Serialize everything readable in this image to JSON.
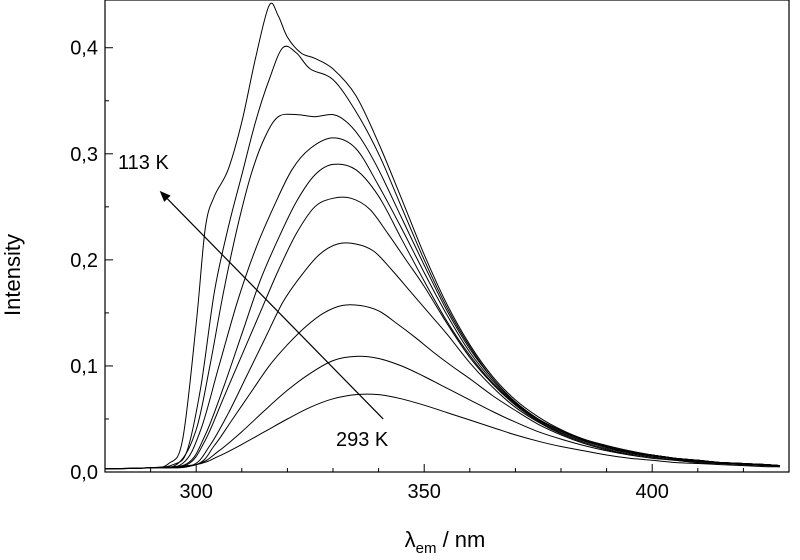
{
  "chart_data": {
    "type": "line",
    "title": "",
    "xlabel": {
      "symbol": "λ",
      "subscript": "em",
      "unit": " / nm"
    },
    "ylabel": "Intensity",
    "xlim": [
      280,
      430
    ],
    "ylim": [
      0,
      0.445
    ],
    "xticks": [
      300,
      350,
      400
    ],
    "xtick_labels": [
      "300",
      "350",
      "400"
    ],
    "yticks": [
      0.0,
      0.1,
      0.2,
      0.3,
      0.4
    ],
    "ytick_labels": [
      "0,0",
      "0,1",
      "0,2",
      "0,3",
      "0,4"
    ],
    "grid": false,
    "annotations": {
      "high_label": "113 K",
      "low_label": "293 K",
      "arrow": {
        "from": [
          341,
          0.05
        ],
        "to": [
          292,
          0.265
        ]
      }
    },
    "series": [
      {
        "x": [
          280,
          290,
          294,
          297,
          300,
          302,
          304,
          307,
          310,
          313,
          316,
          318,
          320,
          323,
          326,
          330,
          335,
          340,
          345,
          350,
          355,
          360,
          365,
          370,
          375,
          380,
          385,
          390,
          395,
          400,
          405,
          410,
          415,
          420,
          425,
          428
        ],
        "y": [
          0.003,
          0.004,
          0.008,
          0.03,
          0.14,
          0.23,
          0.26,
          0.285,
          0.33,
          0.39,
          0.44,
          0.43,
          0.41,
          0.395,
          0.39,
          0.38,
          0.355,
          0.31,
          0.258,
          0.205,
          0.158,
          0.12,
          0.09,
          0.068,
          0.052,
          0.04,
          0.031,
          0.025,
          0.02,
          0.016,
          0.013,
          0.011,
          0.009,
          0.008,
          0.007,
          0.006
        ]
      },
      {
        "x": [
          280,
          290,
          295,
          298,
          301,
          304,
          307,
          310,
          313,
          316,
          319,
          322,
          325,
          330,
          335,
          340,
          345,
          350,
          355,
          360,
          365,
          370,
          375,
          380,
          385,
          390,
          395,
          400,
          405,
          410,
          415,
          420,
          425,
          428
        ],
        "y": [
          0.003,
          0.004,
          0.007,
          0.02,
          0.08,
          0.17,
          0.23,
          0.28,
          0.33,
          0.37,
          0.4,
          0.395,
          0.38,
          0.37,
          0.34,
          0.3,
          0.25,
          0.2,
          0.155,
          0.118,
          0.088,
          0.066,
          0.05,
          0.039,
          0.03,
          0.024,
          0.019,
          0.016,
          0.013,
          0.011,
          0.009,
          0.008,
          0.007,
          0.006
        ]
      },
      {
        "x": [
          280,
          290,
          296,
          300,
          303,
          306,
          309,
          312,
          315,
          318,
          322,
          326,
          330,
          333,
          336,
          340,
          345,
          350,
          355,
          360,
          365,
          370,
          375,
          380,
          385,
          390,
          395,
          400,
          405,
          410,
          415,
          420,
          425,
          428
        ],
        "y": [
          0.003,
          0.004,
          0.008,
          0.04,
          0.1,
          0.17,
          0.23,
          0.28,
          0.315,
          0.335,
          0.337,
          0.335,
          0.337,
          0.33,
          0.315,
          0.285,
          0.24,
          0.195,
          0.152,
          0.116,
          0.088,
          0.066,
          0.05,
          0.039,
          0.03,
          0.024,
          0.019,
          0.016,
          0.013,
          0.011,
          0.009,
          0.008,
          0.007,
          0.006
        ]
      },
      {
        "x": [
          280,
          290,
          297,
          301,
          305,
          309,
          313,
          317,
          321,
          325,
          330,
          335,
          340,
          345,
          350,
          355,
          360,
          365,
          370,
          375,
          380,
          385,
          390,
          395,
          400,
          405,
          410,
          415,
          420,
          425,
          428
        ],
        "y": [
          0.003,
          0.004,
          0.008,
          0.04,
          0.1,
          0.16,
          0.21,
          0.25,
          0.285,
          0.305,
          0.315,
          0.305,
          0.27,
          0.23,
          0.188,
          0.148,
          0.113,
          0.086,
          0.065,
          0.05,
          0.039,
          0.03,
          0.024,
          0.019,
          0.016,
          0.013,
          0.011,
          0.009,
          0.008,
          0.007,
          0.006
        ]
      },
      {
        "x": [
          280,
          290,
          298,
          302,
          306,
          310,
          314,
          318,
          322,
          326,
          330,
          335,
          340,
          345,
          350,
          355,
          360,
          365,
          370,
          375,
          380,
          385,
          390,
          395,
          400,
          405,
          410,
          415,
          420,
          425,
          428
        ],
        "y": [
          0.003,
          0.004,
          0.008,
          0.035,
          0.08,
          0.13,
          0.18,
          0.22,
          0.255,
          0.28,
          0.29,
          0.285,
          0.26,
          0.22,
          0.18,
          0.142,
          0.11,
          0.084,
          0.064,
          0.049,
          0.038,
          0.03,
          0.024,
          0.019,
          0.016,
          0.013,
          0.011,
          0.009,
          0.008,
          0.007,
          0.006
        ]
      },
      {
        "x": [
          280,
          290,
          298,
          302,
          306,
          310,
          314,
          318,
          322,
          326,
          330,
          334,
          338,
          342,
          346,
          350,
          355,
          360,
          365,
          370,
          375,
          380,
          385,
          390,
          395,
          400,
          405,
          410,
          415,
          420,
          425,
          428
        ],
        "y": [
          0.003,
          0.004,
          0.007,
          0.03,
          0.07,
          0.11,
          0.15,
          0.19,
          0.225,
          0.25,
          0.258,
          0.258,
          0.248,
          0.225,
          0.2,
          0.175,
          0.14,
          0.108,
          0.083,
          0.063,
          0.048,
          0.037,
          0.029,
          0.023,
          0.018,
          0.015,
          0.012,
          0.01,
          0.009,
          0.008,
          0.007,
          0.006
        ]
      },
      {
        "x": [
          280,
          290,
          299,
          303,
          307,
          311,
          315,
          319,
          323,
          327,
          331,
          335,
          339,
          343,
          347,
          351,
          355,
          360,
          365,
          370,
          375,
          380,
          385,
          390,
          395,
          400,
          405,
          410,
          415,
          420,
          425,
          428
        ],
        "y": [
          0.003,
          0.004,
          0.006,
          0.025,
          0.055,
          0.09,
          0.125,
          0.16,
          0.185,
          0.205,
          0.215,
          0.215,
          0.208,
          0.19,
          0.17,
          0.15,
          0.13,
          0.103,
          0.08,
          0.061,
          0.047,
          0.036,
          0.028,
          0.022,
          0.018,
          0.015,
          0.012,
          0.01,
          0.009,
          0.008,
          0.007,
          0.006
        ]
      },
      {
        "x": [
          280,
          290,
          300,
          304,
          308,
          312,
          316,
          320,
          324,
          328,
          332,
          336,
          340,
          344,
          348,
          352,
          356,
          360,
          365,
          370,
          375,
          380,
          385,
          390,
          395,
          400,
          405,
          410,
          415,
          420,
          425,
          428
        ],
        "y": [
          0.003,
          0.004,
          0.007,
          0.025,
          0.05,
          0.075,
          0.1,
          0.12,
          0.137,
          0.15,
          0.157,
          0.157,
          0.152,
          0.14,
          0.127,
          0.113,
          0.1,
          0.088,
          0.072,
          0.058,
          0.045,
          0.035,
          0.027,
          0.021,
          0.017,
          0.014,
          0.011,
          0.009,
          0.008,
          0.007,
          0.006,
          0.006
        ]
      },
      {
        "x": [
          280,
          290,
          300,
          305,
          310,
          315,
          320,
          325,
          330,
          335,
          340,
          345,
          350,
          355,
          360,
          365,
          370,
          375,
          380,
          385,
          390,
          395,
          400,
          405,
          410,
          415,
          420,
          425,
          428
        ],
        "y": [
          0.003,
          0.004,
          0.007,
          0.02,
          0.038,
          0.058,
          0.077,
          0.093,
          0.105,
          0.109,
          0.107,
          0.1,
          0.09,
          0.079,
          0.068,
          0.057,
          0.047,
          0.038,
          0.031,
          0.025,
          0.02,
          0.016,
          0.013,
          0.011,
          0.009,
          0.008,
          0.007,
          0.006,
          0.005
        ]
      },
      {
        "x": [
          280,
          290,
          300,
          305,
          310,
          315,
          320,
          325,
          330,
          335,
          340,
          345,
          350,
          355,
          360,
          365,
          370,
          375,
          380,
          385,
          390,
          395,
          400,
          405,
          410,
          415,
          420,
          425,
          428
        ],
        "y": [
          0.003,
          0.004,
          0.007,
          0.015,
          0.026,
          0.038,
          0.05,
          0.061,
          0.069,
          0.073,
          0.073,
          0.069,
          0.063,
          0.056,
          0.049,
          0.042,
          0.035,
          0.029,
          0.024,
          0.02,
          0.016,
          0.013,
          0.011,
          0.009,
          0.008,
          0.007,
          0.006,
          0.005,
          0.005
        ]
      }
    ]
  }
}
